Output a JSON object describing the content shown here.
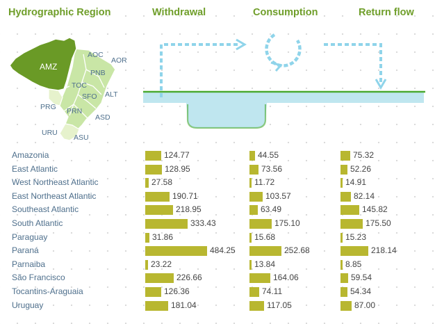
{
  "headers": {
    "region": "Hydrographic Region",
    "withdrawal": "Withdrawal",
    "consumption": "Consumption",
    "return_flow": "Return flow"
  },
  "map": {
    "labels": [
      "AMZ",
      "AOC",
      "AOR",
      "PNB",
      "TOC",
      "SFO",
      "ALT",
      "PRG",
      "PRN",
      "ASD",
      "URU",
      "ASU"
    ],
    "colors": {
      "highlight": "#6a9a26",
      "light": "#c9e6a6",
      "pale": "#e6f2cc",
      "border": "#ffffff"
    }
  },
  "colors": {
    "bar": "#b8b730",
    "header": "#6f9e2a",
    "water": "#bfe6ef",
    "water_edge": "#4aaa30",
    "arrow": "#8fd4ea",
    "label": "#4e6f8c"
  },
  "chart_data": {
    "type": "bar",
    "categories": [
      "Amazonia",
      "East Atlantic",
      "West Northeast Atlantic",
      "East Northeast Atlantic",
      "Southeast Atlantic",
      "South Atlantic",
      "Paraguay",
      "Paraná",
      "Parnaiba",
      "São Francisco",
      "Tocantins-Araguaia",
      "Uruguay"
    ],
    "series": [
      {
        "name": "Withdrawal",
        "labels": [
          "124.77",
          "128.95",
          "27.58",
          "190.71",
          "218.95",
          "333.43",
          "31.86",
          "484.25",
          "23.22",
          "226.66",
          "126.36",
          "181.04"
        ]
      },
      {
        "name": "Consumption",
        "labels": [
          "44.55",
          "73.56",
          "11.72",
          "103.57",
          "63.49",
          "175.10",
          "15.68",
          "252.68",
          "13.84",
          "164.06",
          "74.11",
          "117.05"
        ]
      },
      {
        "name": "Return flow",
        "labels": [
          "75.32",
          "52.26",
          "14.91",
          "82.14",
          "145.82",
          "175.50",
          "15.23",
          "218.14",
          "8.85",
          "59.54",
          "54.34",
          "87.00"
        ]
      }
    ]
  }
}
